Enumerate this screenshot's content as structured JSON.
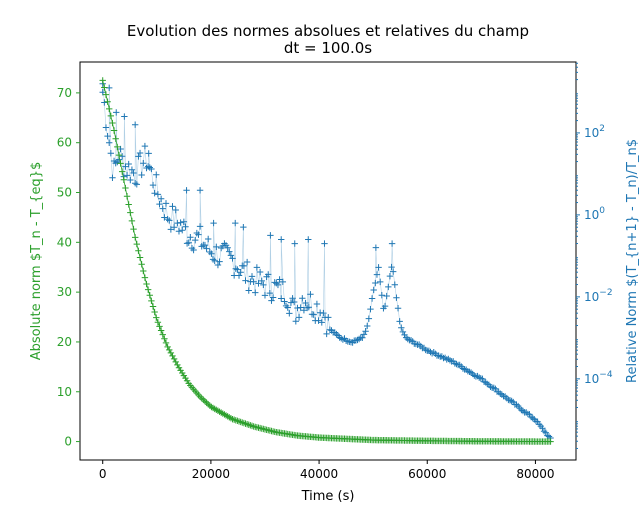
{
  "chart_data": {
    "type": "scatter",
    "title": "Evolution des normes absolues et relatives du champ",
    "subtitle": "dt = 100.0s",
    "xlabel": "Time (s)",
    "ylabel_left": "Absolute norm $T_n - T_{eq}$",
    "ylabel_right": "Relative Norm $(T_{n+1} - T_n)/T_n$",
    "xlim": [
      -4200,
      87500
    ],
    "ylim_left": [
      -3.7,
      76.2
    ],
    "ylim_right_log10": [
      -5.98,
      3.73
    ],
    "yscale_right": "log",
    "xticks": [
      0,
      20000,
      40000,
      60000,
      80000
    ],
    "yticks_left": [
      0,
      10,
      20,
      30,
      40,
      50,
      60,
      70
    ],
    "yticks_right_exp": [
      2,
      0,
      -2,
      -4
    ],
    "grid": false,
    "colors": {
      "left": "#2ca02c",
      "right": "#1f77b4"
    },
    "marker": "plus",
    "series": [
      {
        "axis": "left",
        "note": "absolute norm, exponential-like decay from ~73 to ~0",
        "x": [
          0,
          2000,
          4000,
          6000,
          8000,
          10000,
          12000,
          14000,
          16000,
          18000,
          20000,
          24000,
          28000,
          32000,
          36000,
          40000,
          50000,
          60000,
          70000,
          83000
        ],
        "y": [
          72.5,
          63,
          52,
          41,
          32,
          24.5,
          19,
          15,
          11.5,
          9,
          7,
          4.5,
          3,
          1.9,
          1.2,
          0.8,
          0.3,
          0.15,
          0.05,
          0
        ]
      },
      {
        "axis": "right",
        "note": "relative norm (log scale), noisy early, two peaks near 50000 and 53500, then log-linear decay",
        "x": [
          0,
          1000,
          2000,
          3000,
          4000,
          6000,
          8000,
          10000,
          12000,
          14000,
          16000,
          18000,
          20000,
          22000,
          24000,
          26000,
          28000,
          30000,
          32000,
          34000,
          35500,
          37000,
          39000,
          41000,
          42000,
          44000,
          46000,
          48000,
          49000,
          50000,
          51000,
          52000,
          53500,
          55000,
          56000,
          60000,
          65000,
          70000,
          75000,
          80000,
          83000
        ],
        "y_exp": [
          3.0,
          2.0,
          1.0,
          1.5,
          1.2,
          1.0,
          1.4,
          0.6,
          0.0,
          -0.2,
          -0.5,
          -0.6,
          -0.9,
          -1.0,
          -1.1,
          -1.4,
          -1.6,
          -1.7,
          -1.8,
          -1.9,
          -2.4,
          -2.0,
          -2.2,
          -2.4,
          -2.8,
          -3.0,
          -3.1,
          -3.0,
          -2.7,
          -1.9,
          -1.3,
          -2.4,
          -1.2,
          -2.7,
          -3.0,
          -3.3,
          -3.6,
          -4.0,
          -4.5,
          -5.0,
          -5.5
        ],
        "spikes": [
          {
            "x": 0,
            "y_exp": 3.2
          },
          {
            "x": 1200,
            "y_exp": 3.1
          },
          {
            "x": 2500,
            "y_exp": 2.5
          },
          {
            "x": 4000,
            "y_exp": 2.4
          },
          {
            "x": 6000,
            "y_exp": 2.2
          },
          {
            "x": 8500,
            "y_exp": 1.5
          },
          {
            "x": 15500,
            "y_exp": 0.6
          },
          {
            "x": 18000,
            "y_exp": 0.6
          },
          {
            "x": 20500,
            "y_exp": -0.2
          },
          {
            "x": 24500,
            "y_exp": -0.2
          },
          {
            "x": 26000,
            "y_exp": -0.3
          },
          {
            "x": 31000,
            "y_exp": -0.5
          },
          {
            "x": 33000,
            "y_exp": -0.6
          },
          {
            "x": 35500,
            "y_exp": -0.7
          },
          {
            "x": 38000,
            "y_exp": -0.6
          },
          {
            "x": 41000,
            "y_exp": -0.7
          },
          {
            "x": 50500,
            "y_exp": -0.8
          },
          {
            "x": 53500,
            "y_exp": -0.7
          }
        ]
      }
    ]
  }
}
